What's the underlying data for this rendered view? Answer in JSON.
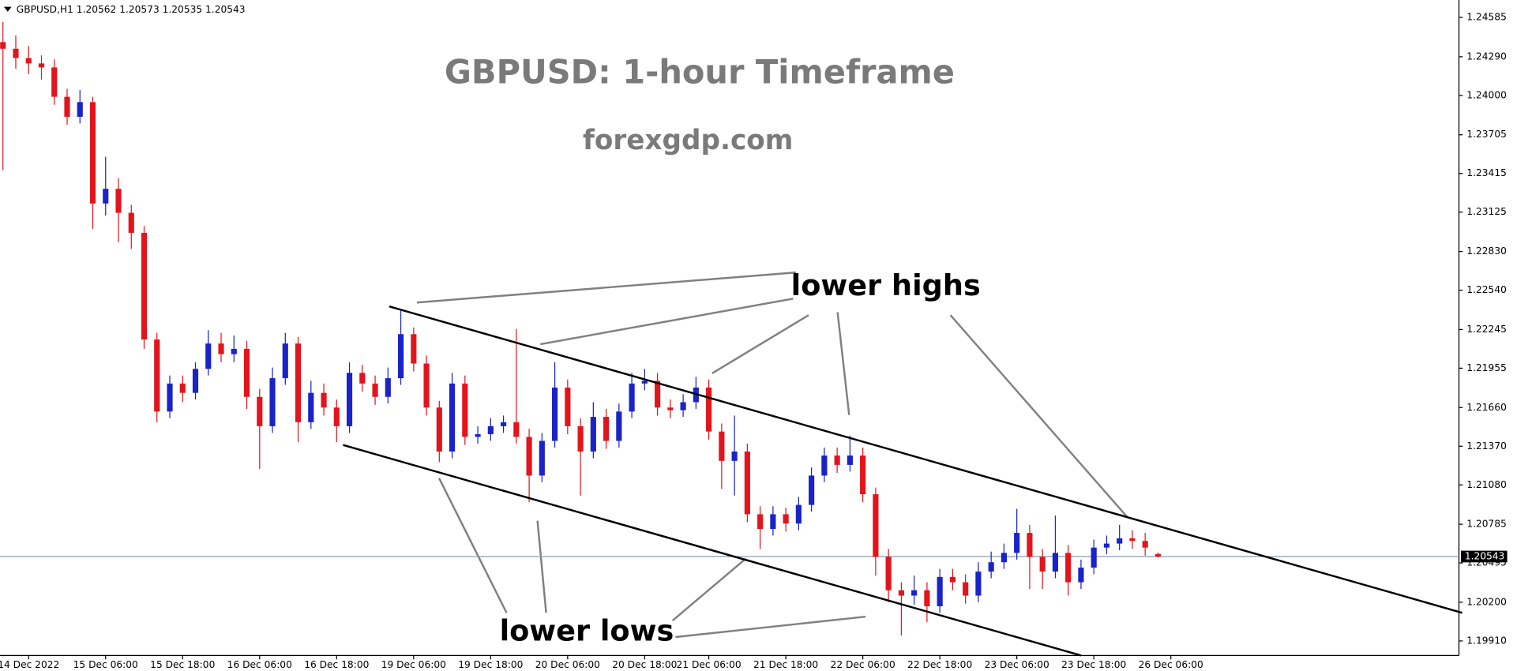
{
  "chart_data": {
    "type": "candlestick",
    "header": "GBPUSD,H1  1.20562 1.20573 1.20535 1.20543",
    "title": "GBPUSD: 1-hour Timeframe",
    "subtitle": "forexgdp.com",
    "annotations": [
      "lower highs",
      "lower lows"
    ],
    "up_color": "#1a23c8",
    "down_color": "#e3141c",
    "ohlc": [
      [
        1.244,
        1.2455,
        1.2344,
        1.2435
      ],
      [
        1.2435,
        1.2445,
        1.242,
        1.2428
      ],
      [
        1.2428,
        1.2437,
        1.2416,
        1.2424
      ],
      [
        1.2424,
        1.243,
        1.2412,
        1.2421
      ],
      [
        1.2421,
        1.2427,
        1.2393,
        1.2399
      ],
      [
        1.2399,
        1.2405,
        1.2378,
        1.2384
      ],
      [
        1.2384,
        1.2404,
        1.2379,
        1.2395
      ],
      [
        1.2395,
        1.2399,
        1.23,
        1.2319
      ],
      [
        1.2319,
        1.2354,
        1.231,
        1.233
      ],
      [
        1.233,
        1.2338,
        1.229,
        1.2312
      ],
      [
        1.2312,
        1.2318,
        1.2285,
        1.2297
      ],
      [
        1.2297,
        1.2302,
        1.221,
        1.2217
      ],
      [
        1.2217,
        1.2222,
        1.2155,
        1.2163
      ],
      [
        1.2163,
        1.219,
        1.2158,
        1.2184
      ],
      [
        1.2184,
        1.219,
        1.217,
        1.2177
      ],
      [
        1.2177,
        1.22,
        1.2172,
        1.2195
      ],
      [
        1.2195,
        1.2224,
        1.219,
        1.2214
      ],
      [
        1.2214,
        1.2222,
        1.22,
        1.2206
      ],
      [
        1.2206,
        1.222,
        1.22,
        1.221
      ],
      [
        1.221,
        1.2216,
        1.2165,
        1.2174
      ],
      [
        1.2174,
        1.218,
        1.212,
        1.2152
      ],
      [
        1.2152,
        1.2196,
        1.2147,
        1.2188
      ],
      [
        1.2188,
        1.2222,
        1.2183,
        1.2214
      ],
      [
        1.2214,
        1.2219,
        1.214,
        1.2155
      ],
      [
        1.2155,
        1.2186,
        1.215,
        1.2177
      ],
      [
        1.2177,
        1.2184,
        1.216,
        1.2166
      ],
      [
        1.2166,
        1.2172,
        1.214,
        1.2152
      ],
      [
        1.2152,
        1.22,
        1.2147,
        1.2192
      ],
      [
        1.2192,
        1.2198,
        1.2178,
        1.2184
      ],
      [
        1.2184,
        1.219,
        1.2168,
        1.2174
      ],
      [
        1.2174,
        1.2196,
        1.2169,
        1.2188
      ],
      [
        1.2188,
        1.224,
        1.2183,
        1.2221
      ],
      [
        1.2221,
        1.2226,
        1.2193,
        1.2199
      ],
      [
        1.2199,
        1.2205,
        1.216,
        1.2166
      ],
      [
        1.2166,
        1.2171,
        1.2125,
        1.2133
      ],
      [
        1.2133,
        1.2192,
        1.2128,
        1.2184
      ],
      [
        1.2184,
        1.219,
        1.2138,
        1.2144
      ],
      [
        1.2144,
        1.2152,
        1.2139,
        1.2146
      ],
      [
        1.2146,
        1.2158,
        1.2141,
        1.2152
      ],
      [
        1.2152,
        1.216,
        1.2147,
        1.2155
      ],
      [
        1.2155,
        1.2225,
        1.2139,
        1.2144
      ],
      [
        1.2144,
        1.215,
        1.2095,
        1.2115
      ],
      [
        1.2115,
        1.2147,
        1.211,
        1.2141
      ],
      [
        1.2141,
        1.22,
        1.2136,
        1.2181
      ],
      [
        1.2181,
        1.2187,
        1.2146,
        1.2152
      ],
      [
        1.2152,
        1.2158,
        1.21,
        1.2133
      ],
      [
        1.2133,
        1.217,
        1.2128,
        1.2159
      ],
      [
        1.2159,
        1.2165,
        1.2135,
        1.2141
      ],
      [
        1.2141,
        1.2169,
        1.2136,
        1.2163
      ],
      [
        1.2163,
        1.2192,
        1.2158,
        1.2184
      ],
      [
        1.2184,
        1.2195,
        1.2179,
        1.2186
      ],
      [
        1.2186,
        1.2192,
        1.216,
        1.2166
      ],
      [
        1.2166,
        1.2172,
        1.2158,
        1.2164
      ],
      [
        1.2164,
        1.2176,
        1.2159,
        1.217
      ],
      [
        1.217,
        1.2189,
        1.2165,
        1.2181
      ],
      [
        1.2181,
        1.2187,
        1.2142,
        1.2148
      ],
      [
        1.2148,
        1.2154,
        1.2105,
        1.2126
      ],
      [
        1.2126,
        1.216,
        1.21,
        1.2133
      ],
      [
        1.2133,
        1.2139,
        1.208,
        1.2086
      ],
      [
        1.2086,
        1.2092,
        1.206,
        1.2075
      ],
      [
        1.2075,
        1.2092,
        1.207,
        1.2086
      ],
      [
        1.2086,
        1.2091,
        1.2073,
        1.2079
      ],
      [
        1.2079,
        1.2099,
        1.2074,
        1.2093
      ],
      [
        1.2093,
        1.2121,
        1.2088,
        1.2115
      ],
      [
        1.2115,
        1.2136,
        1.211,
        1.213
      ],
      [
        1.213,
        1.2136,
        1.2117,
        1.2123
      ],
      [
        1.2123,
        1.2145,
        1.2118,
        1.213
      ],
      [
        1.213,
        1.2136,
        1.2095,
        1.2101
      ],
      [
        1.2101,
        1.2106,
        1.204,
        1.2054
      ],
      [
        1.2054,
        1.206,
        1.202,
        1.2029
      ],
      [
        1.2029,
        1.2035,
        1.1995,
        1.2025
      ],
      [
        1.2025,
        1.204,
        1.2018,
        1.2029
      ],
      [
        1.2029,
        1.2035,
        1.2005,
        1.2017
      ],
      [
        1.2017,
        1.2045,
        1.2012,
        1.2039
      ],
      [
        1.2039,
        1.2045,
        1.2029,
        1.2035
      ],
      [
        1.2035,
        1.2041,
        1.2019,
        1.2025
      ],
      [
        1.2025,
        1.205,
        1.202,
        1.2043
      ],
      [
        1.2043,
        1.2058,
        1.2038,
        1.205
      ],
      [
        1.205,
        1.2064,
        1.2045,
        1.2057
      ],
      [
        1.2057,
        1.209,
        1.2052,
        1.2072
      ],
      [
        1.2072,
        1.2078,
        1.203,
        1.2054
      ],
      [
        1.2054,
        1.206,
        1.203,
        1.2043
      ],
      [
        1.2043,
        1.2085,
        1.2038,
        1.2057
      ],
      [
        1.2057,
        1.2063,
        1.2025,
        1.2035
      ],
      [
        1.2035,
        1.2052,
        1.203,
        1.2046
      ],
      [
        1.2046,
        1.2067,
        1.2041,
        1.2061
      ],
      [
        1.2061,
        1.207,
        1.2056,
        1.2064
      ],
      [
        1.2064,
        1.2078,
        1.2059,
        1.2068
      ],
      [
        1.2068,
        1.2074,
        1.206,
        1.2066
      ],
      [
        1.2066,
        1.2072,
        1.2055,
        1.2061
      ],
      [
        1.20562,
        1.20573,
        1.20535,
        1.20543
      ]
    ],
    "channel_lines": [
      [
        30.1,
        1.22418,
        113.7,
        1.20121
      ],
      [
        26.5,
        1.21379,
        84.0,
        1.19801
      ]
    ],
    "price_line": 1.20543,
    "xlim": [
      -0.23,
      113.3
    ],
    "xticks": [
      {
        "value": 2,
        "label": "14 Dec 2022"
      },
      {
        "value": 8,
        "label": "15 Dec 06:00"
      },
      {
        "value": 14,
        "label": "15 Dec 18:00"
      },
      {
        "value": 20,
        "label": "16 Dec 06:00"
      },
      {
        "value": 26,
        "label": "16 Dec 18:00"
      },
      {
        "value": 32,
        "label": "19 Dec 06:00"
      },
      {
        "value": 38,
        "label": "19 Dec 18:00"
      },
      {
        "value": 44,
        "label": "20 Dec 06:00"
      },
      {
        "value": 50,
        "label": "20 Dec 18:00"
      },
      {
        "value": 55,
        "label": "21 Dec 06:00"
      },
      {
        "value": 61,
        "label": "21 Dec 18:00"
      },
      {
        "value": 67,
        "label": "22 Dec 06:00"
      },
      {
        "value": 73,
        "label": "22 Dec 18:00"
      },
      {
        "value": 79,
        "label": "23 Dec 06:00"
      },
      {
        "value": 85,
        "label": "23 Dec 18:00"
      },
      {
        "value": 91,
        "label": "26 Dec 06:00"
      }
    ],
    "ylim": [
      1.19801,
      1.24701
    ],
    "yticks": [
      1.24585,
      {
        "value": 1.2429,
        "label": "1.24290"
      },
      {
        "value": 1.24,
        "label": "1.24000"
      },
      1.23705,
      1.23415,
      1.23125,
      {
        "value": 1.2283,
        "label": "1.22830"
      },
      {
        "value": 1.2254,
        "label": "1.22540"
      },
      1.22245,
      1.21955,
      {
        "value": 1.2166,
        "label": "1.21660"
      },
      {
        "value": 1.2137,
        "label": "1.21370"
      },
      {
        "value": 1.2108,
        "label": "1.21080"
      },
      1.20785,
      1.20495,
      {
        "value": 1.202,
        "label": "1.20200"
      },
      {
        "value": 1.1991,
        "label": "1.19910"
      }
    ]
  }
}
